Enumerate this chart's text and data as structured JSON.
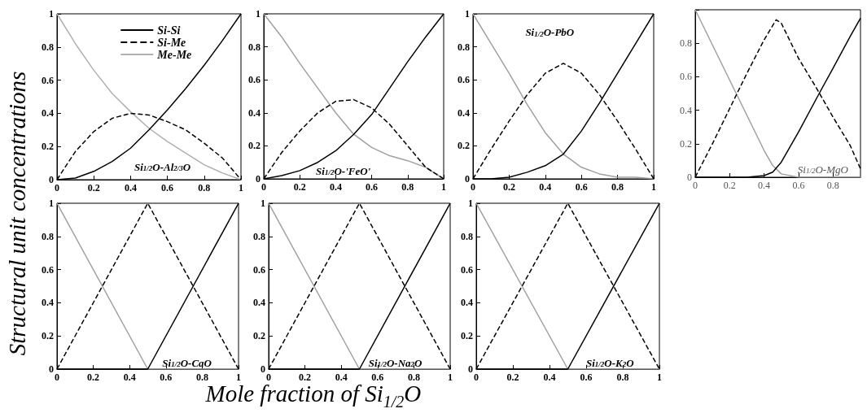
{
  "chart_data": [
    {
      "type": "line",
      "ylabel": "Structural unit concentrations",
      "annotations": [
        "Si$_{1/2}$O-Al$_{2/3}$O"
      ],
      "legend": "top",
      "marker": "none",
      "xlim": [
        0,
        1
      ],
      "ylim": [
        0,
        1
      ],
      "xticks": [
        0,
        0.2,
        0.4,
        0.6,
        0.8,
        1
      ],
      "yticks": [
        0,
        0.2,
        0.4,
        0.6,
        0.8,
        1
      ],
      "x": [
        0,
        0.1,
        0.2,
        0.3,
        0.4,
        0.5,
        0.6,
        0.7,
        0.8,
        0.9,
        1
      ],
      "series": [
        {
          "name": "Si-Si",
          "color": "#000000",
          "line_style": "solid",
          "values": [
            0,
            0.01,
            0.05,
            0.11,
            0.19,
            0.3,
            0.42,
            0.55,
            0.69,
            0.84,
            1
          ]
        },
        {
          "name": "Si-Me",
          "color": "#000000",
          "line_style": "dashed",
          "values": [
            0,
            0.17,
            0.29,
            0.37,
            0.4,
            0.39,
            0.35,
            0.3,
            0.22,
            0.13,
            0
          ]
        },
        {
          "name": "Me-Me",
          "color": "#b0b0b0",
          "line_style": "solid",
          "values": [
            1,
            0.82,
            0.66,
            0.52,
            0.41,
            0.31,
            0.23,
            0.16,
            0.09,
            0.04,
            0
          ]
        }
      ]
    },
    {
      "type": "line",
      "annotations": [
        "Si$_{1/2}$O-'FeO'"
      ],
      "marker": "none",
      "xlim": [
        0,
        1
      ],
      "ylim": [
        0,
        1
      ],
      "xticks": [
        0,
        0.2,
        0.4,
        0.6,
        0.8,
        1
      ],
      "yticks": [
        0,
        0.2,
        0.4,
        0.6,
        0.8,
        1
      ],
      "x": [
        0,
        0.1,
        0.2,
        0.3,
        0.4,
        0.5,
        0.6,
        0.7,
        0.8,
        0.9,
        1
      ],
      "series": [
        {
          "color": "#000000",
          "line_style": "solid",
          "values": [
            0,
            0.02,
            0.05,
            0.1,
            0.17,
            0.27,
            0.39,
            0.55,
            0.71,
            0.86,
            1
          ]
        },
        {
          "color": "#000000",
          "line_style": "dashed",
          "values": [
            0,
            0.16,
            0.29,
            0.4,
            0.47,
            0.48,
            0.43,
            0.33,
            0.2,
            0.07,
            0
          ]
        },
        {
          "color": "#a0a0a0",
          "line_style": "solid",
          "values": [
            1,
            0.86,
            0.7,
            0.55,
            0.4,
            0.27,
            0.19,
            0.14,
            0.11,
            0.07,
            0
          ]
        }
      ]
    },
    {
      "type": "line",
      "annotations": [
        "Si$_{1/2}$O-PbO"
      ],
      "marker": "none",
      "xlim": [
        0,
        1
      ],
      "ylim": [
        0,
        1
      ],
      "xticks": [
        0,
        0.2,
        0.4,
        0.6,
        0.8,
        1
      ],
      "yticks": [
        0,
        0.2,
        0.4,
        0.6,
        0.8,
        1
      ],
      "x": [
        0,
        0.1,
        0.2,
        0.3,
        0.4,
        0.5,
        0.6,
        0.7,
        0.8,
        0.9,
        1
      ],
      "series": [
        {
          "color": "#000000",
          "line_style": "solid",
          "values": [
            0,
            0,
            0.01,
            0.04,
            0.08,
            0.15,
            0.29,
            0.46,
            0.64,
            0.82,
            1
          ]
        },
        {
          "color": "#000000",
          "line_style": "dashed",
          "values": [
            0,
            0.18,
            0.35,
            0.51,
            0.64,
            0.7,
            0.64,
            0.51,
            0.35,
            0.18,
            0
          ]
        },
        {
          "color": "#a0a0a0",
          "line_style": "solid",
          "values": [
            1,
            0.82,
            0.64,
            0.45,
            0.28,
            0.15,
            0.07,
            0.03,
            0.01,
            0.01,
            0
          ]
        }
      ]
    },
    {
      "type": "line",
      "annotations": [
        "Si$_{1/2}$O-MgO"
      ],
      "marker": "none",
      "xlim": [
        0,
        0.96
      ],
      "ylim": [
        0,
        1
      ],
      "xticks": [
        0,
        0.2,
        0.4,
        0.6,
        0.8
      ],
      "yticks": [
        0,
        0.2,
        0.4,
        0.6,
        0.8,
        {
          "value": 1,
          "label": null
        }
      ],
      "series": [
        {
          "color": "#000000",
          "line_style": "solid",
          "x": [
            0,
            0.1,
            0.2,
            0.3,
            0.4,
            0.45,
            0.5,
            0.6,
            0.72,
            0.8,
            0.9,
            0.96
          ],
          "values": [
            0,
            0,
            0,
            0,
            0.01,
            0.03,
            0.09,
            0.27,
            0.5,
            0.65,
            0.84,
            0.95
          ]
        },
        {
          "color": "#000000",
          "line_style": "dashed",
          "x": [
            0,
            0.1,
            0.2,
            0.3,
            0.4,
            0.47,
            0.5,
            0.6,
            0.7,
            0.8,
            0.9,
            0.96
          ],
          "values": [
            0,
            0.2,
            0.41,
            0.62,
            0.82,
            0.94,
            0.92,
            0.71,
            0.54,
            0.36,
            0.19,
            0.05
          ]
        },
        {
          "color": "#a0a0a0",
          "line_style": "solid",
          "x": [
            0,
            0.1,
            0.2,
            0.3,
            0.4,
            0.45,
            0.5,
            0.6,
            0.8,
            0.96
          ],
          "values": [
            1,
            0.79,
            0.58,
            0.37,
            0.16,
            0.07,
            0.02,
            0,
            0,
            0
          ]
        }
      ]
    },
    {
      "type": "line",
      "annotations": [
        "Si$_{1/2}$O-CaO"
      ],
      "marker": "none",
      "xlim": [
        0,
        1
      ],
      "ylim": [
        0,
        1
      ],
      "xticks": [
        0,
        0.2,
        0.4,
        0.6,
        0.8,
        1
      ],
      "yticks": [
        0,
        0.2,
        0.4,
        0.6,
        0.8,
        1
      ],
      "x": [
        0,
        0.5,
        1
      ],
      "series": [
        {
          "color": "#000000",
          "line_style": "solid",
          "values": [
            0,
            0,
            1
          ]
        },
        {
          "color": "#000000",
          "line_style": "dashed",
          "values": [
            0,
            1,
            0
          ]
        },
        {
          "color": "#a0a0a0",
          "line_style": "solid",
          "values": [
            1,
            0,
            0
          ]
        }
      ]
    },
    {
      "type": "line",
      "xlabel": "Mole fraction of Si$_{1/2}$O",
      "annotations": [
        "Si$_{1/2}$O-Na$_{2}$O"
      ],
      "marker": "none",
      "xlim": [
        0,
        1
      ],
      "ylim": [
        0,
        1
      ],
      "xticks": [
        0,
        0.2,
        0.4,
        0.6,
        0.8,
        1
      ],
      "yticks": [
        0,
        0.2,
        0.4,
        0.6,
        0.8,
        1
      ],
      "x": [
        0,
        0.5,
        1
      ],
      "series": [
        {
          "color": "#000000",
          "line_style": "solid",
          "values": [
            0,
            0,
            1
          ]
        },
        {
          "color": "#000000",
          "line_style": "dashed",
          "values": [
            0,
            1,
            0
          ]
        },
        {
          "color": "#a0a0a0",
          "line_style": "solid",
          "values": [
            1,
            0,
            0
          ]
        }
      ]
    },
    {
      "type": "line",
      "annotations": [
        "Si$_{1/2}$O-K$_{2}$O"
      ],
      "marker": "none",
      "xlim": [
        0,
        1
      ],
      "ylim": [
        0,
        1
      ],
      "xticks": [
        0,
        0.2,
        0.4,
        0.6,
        0.8,
        1
      ],
      "yticks": [
        0,
        0.2,
        0.4,
        0.6,
        0.8,
        1
      ],
      "x": [
        0,
        0.5,
        1
      ],
      "series": [
        {
          "color": "#000000",
          "line_style": "solid",
          "values": [
            0,
            0,
            1
          ]
        },
        {
          "color": "#000000",
          "line_style": "dashed",
          "values": [
            0,
            1,
            0
          ]
        },
        {
          "color": "#a0a0a0",
          "line_style": "solid",
          "values": [
            1,
            0,
            0
          ]
        }
      ]
    }
  ]
}
